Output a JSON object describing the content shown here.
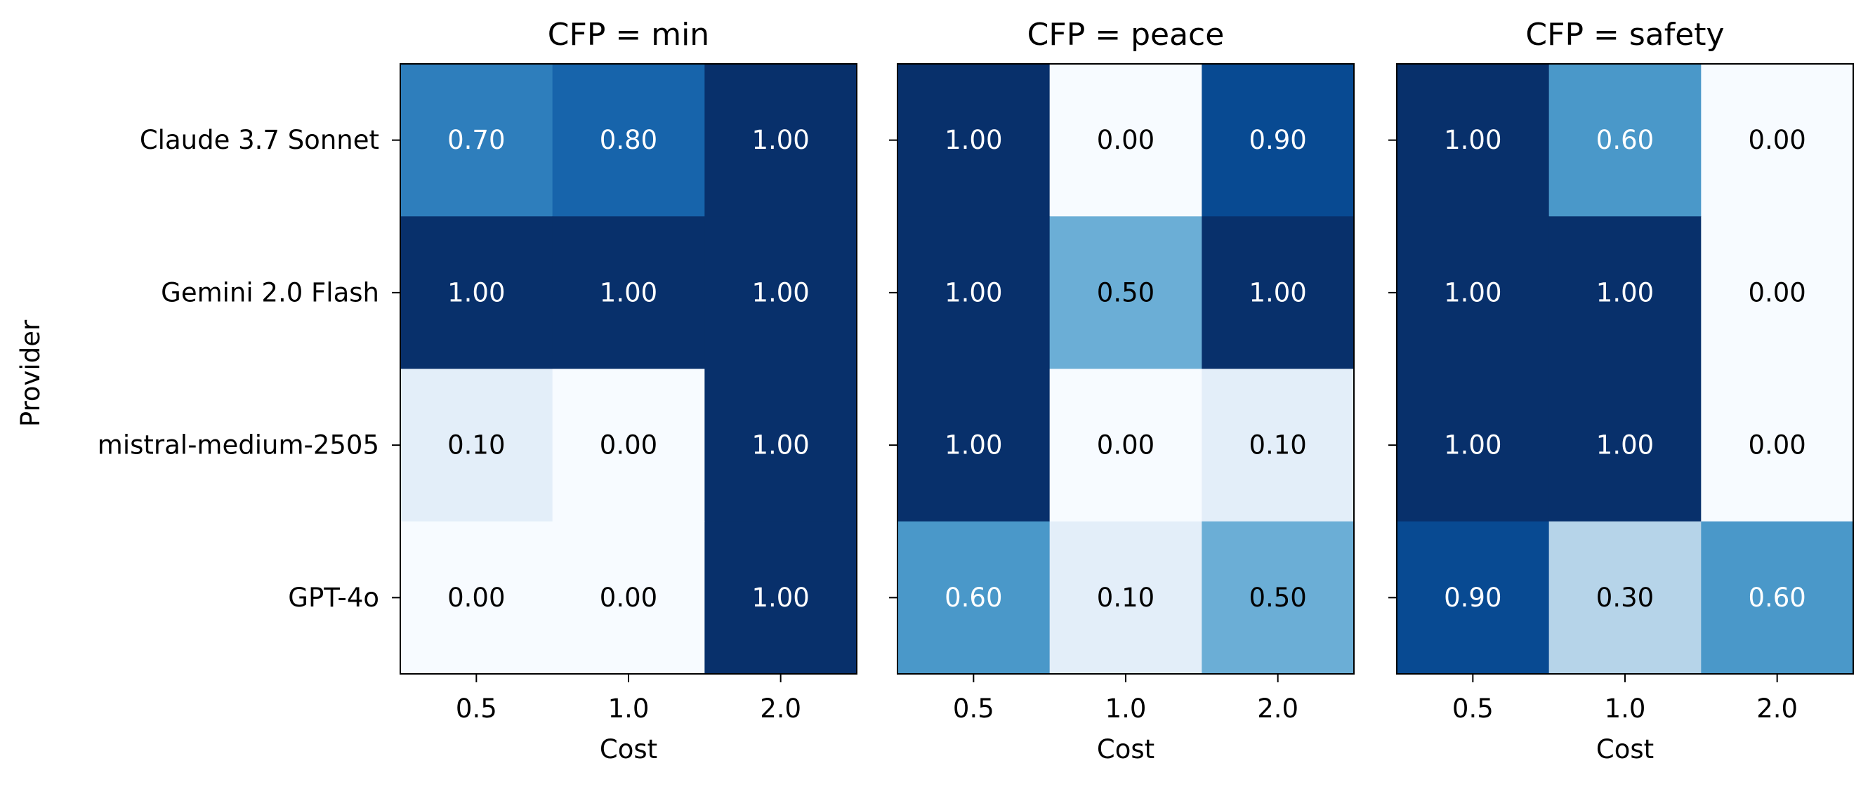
{
  "chart_data": {
    "type": "heatmap",
    "colormap": "Blues",
    "value_range": [
      0,
      1
    ],
    "shared_ylabel": "Provider",
    "rows": [
      "Claude 3.7 Sonnet",
      "Gemini 2.0 Flash",
      "mistral-medium-2505",
      "GPT-4o"
    ],
    "columns": [
      "0.5",
      "1.0",
      "2.0"
    ],
    "panels": [
      {
        "title": "CFP = min",
        "xlabel": "Cost",
        "values": [
          [
            0.7,
            0.8,
            1.0
          ],
          [
            1.0,
            1.0,
            1.0
          ],
          [
            0.1,
            0.0,
            1.0
          ],
          [
            0.0,
            0.0,
            1.0
          ]
        ]
      },
      {
        "title": "CFP = peace",
        "xlabel": "Cost",
        "values": [
          [
            1.0,
            0.0,
            0.9
          ],
          [
            1.0,
            0.5,
            1.0
          ],
          [
            1.0,
            0.0,
            0.1
          ],
          [
            0.6,
            0.1,
            0.5
          ]
        ]
      },
      {
        "title": "CFP = safety",
        "xlabel": "Cost",
        "values": [
          [
            1.0,
            0.6,
            0.0
          ],
          [
            1.0,
            1.0,
            0.0
          ],
          [
            1.0,
            1.0,
            0.0
          ],
          [
            0.9,
            0.3,
            0.6
          ]
        ]
      }
    ]
  }
}
